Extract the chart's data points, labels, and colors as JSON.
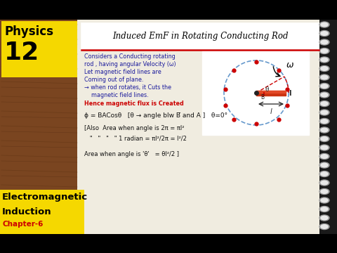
{
  "bg_color": "#1a1a1a",
  "wood_color": "#7a4520",
  "wood_dark": "#5a3010",
  "notebook_color": "#f0ece0",
  "yellow_bg": "#f5d800",
  "black_bar": "#000000",
  "physics_text": "Physics",
  "number_text": "12",
  "em_line1": "Electromagnetic",
  "em_line2": "Induction",
  "chapter_text": "Chapter-6",
  "title": "Induced EmF in Rotating Conducting Rod",
  "line1": "Considers a Conducting rotating",
  "line2": "rod , having angular Velocity (ω)",
  "line3": "Let magnetic field lines are",
  "line4": "Coming out of plane.",
  "line5": "→ when rod rotates, it Cuts the",
  "line6": "    magnetic field lines.",
  "line7": "Hence magnetic flux is Created",
  "formula1": "ϕ = BACosθ   [θ → angle blw B̅ and A ]   θ=0°",
  "formula2": "[Also  Area when angle is 2π = πl²",
  "formula3": "   \"   \"   \"   \" 1 radian = πl²/2π = l²/2",
  "formula4": "Area when angle is 'θ'   = θl²/2 ]",
  "dot_color": "#cc0000",
  "circle_color": "#6699cc",
  "rod_color_top": "#cc4422",
  "rod_color_bot": "#ee6644",
  "text_blue": "#1a1a9c",
  "text_red": "#cc0000",
  "text_dark": "#111111",
  "spiral_color": "#aaaaaa",
  "title_font": 8.5,
  "body_font": 5.8,
  "formula_font": 6.0
}
